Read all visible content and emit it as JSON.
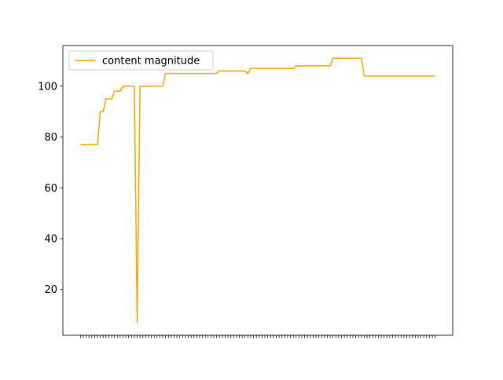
{
  "chart_data": {
    "type": "line",
    "title": "",
    "xlabel": "",
    "ylabel": "",
    "x_tick_labels_shown": false,
    "ylim": [
      2,
      116
    ],
    "yticks": [
      20,
      40,
      60,
      80,
      100
    ],
    "grid": false,
    "legend_position": "top-left",
    "series": [
      {
        "name": "content magnitude",
        "color": "#ffa500",
        "values": [
          77,
          77,
          77,
          77,
          77,
          77,
          77,
          90,
          90,
          95,
          95,
          95,
          98,
          98,
          98,
          100,
          100,
          100,
          100,
          100,
          7,
          100,
          100,
          100,
          100,
          100,
          100,
          100,
          100,
          100,
          105,
          105,
          105,
          105,
          105,
          105,
          105,
          105,
          105,
          105,
          105,
          105,
          105,
          105,
          105,
          105,
          105,
          105,
          105,
          106,
          106,
          106,
          106,
          106,
          106,
          106,
          106,
          106,
          106,
          105,
          107,
          107,
          107,
          107,
          107,
          107,
          107,
          107,
          107,
          107,
          107,
          107,
          107,
          107,
          107,
          107,
          108,
          108,
          108,
          108,
          108,
          108,
          108,
          108,
          108,
          108,
          108,
          108,
          108,
          111,
          111,
          111,
          111,
          111,
          111,
          111,
          111,
          111,
          111,
          111,
          104,
          104,
          104,
          104,
          104,
          104,
          104,
          104,
          104,
          104,
          104,
          104,
          104,
          104,
          104,
          104,
          104,
          104,
          104,
          104,
          104,
          104,
          104,
          104,
          104,
          104
        ]
      }
    ]
  }
}
